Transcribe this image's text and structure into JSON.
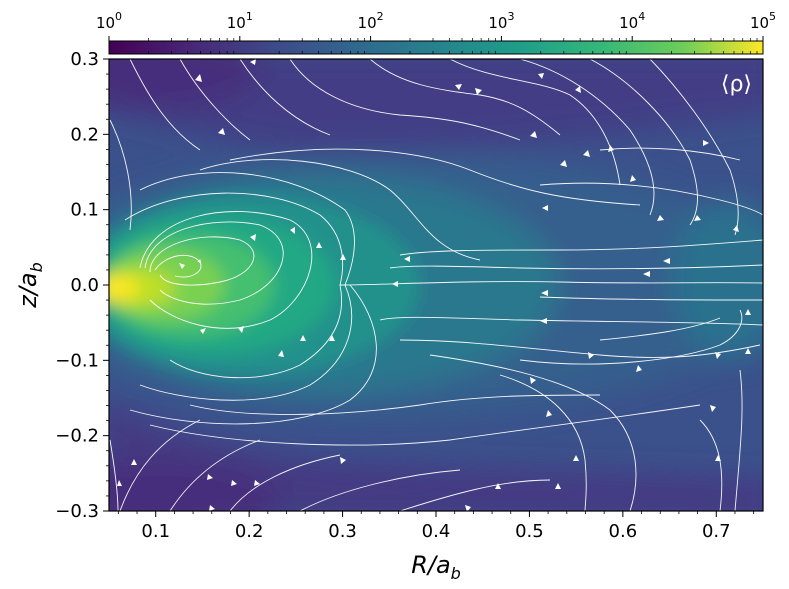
{
  "chart_data": {
    "type": "heatmap",
    "description_free": true,
    "panel_label": "⟨ρ⟩",
    "xlabel": {
      "main": "R/a",
      "sub": "b"
    },
    "ylabel": {
      "main": "z/a",
      "sub": "b"
    },
    "xlim": [
      0.05,
      0.75
    ],
    "ylim": [
      -0.3,
      0.3
    ],
    "x_ticks": [
      0.1,
      0.2,
      0.3,
      0.4,
      0.5,
      0.6,
      0.7
    ],
    "x_tick_labels": [
      "0.1",
      "0.2",
      "0.3",
      "0.4",
      "0.5",
      "0.6",
      "0.7"
    ],
    "y_ticks": [
      -0.3,
      -0.2,
      -0.1,
      0.0,
      0.1,
      0.2,
      0.3
    ],
    "y_tick_labels": [
      "−0.3",
      "−0.2",
      "−0.1",
      "0.0",
      "0.1",
      "0.2",
      "0.3"
    ],
    "colorbar": {
      "scale": "log",
      "range": [
        1,
        100000
      ],
      "colormap": "viridis",
      "ticks": [
        {
          "base": "10",
          "exp": "0"
        },
        {
          "base": "10",
          "exp": "1"
        },
        {
          "base": "10",
          "exp": "2"
        },
        {
          "base": "10",
          "exp": "3"
        },
        {
          "base": "10",
          "exp": "4"
        },
        {
          "base": "10",
          "exp": "5"
        }
      ]
    },
    "density_peaks": [
      {
        "R": 0.05,
        "z": 0.0,
        "log10_rho": 4.8
      },
      {
        "R": 0.15,
        "z": 0.0,
        "log10_rho": 3.9
      },
      {
        "R": 0.3,
        "z": 0.0,
        "log10_rho": 3.0
      },
      {
        "R": 0.45,
        "z": 0.0,
        "log10_rho": 2.4
      },
      {
        "R": 0.75,
        "z": 0.0,
        "log10_rho": 1.8
      }
    ],
    "streamlines_color": "#ffffff"
  }
}
